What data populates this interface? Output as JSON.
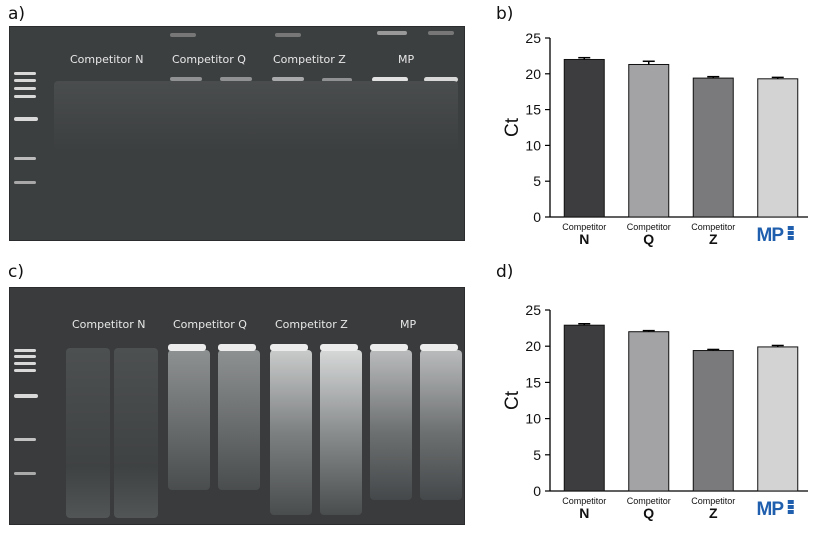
{
  "panels": {
    "a": {
      "label": "a)",
      "lanes": [
        "Competitor N",
        "Competitor Q",
        "Competitor Z",
        "MP"
      ]
    },
    "b": {
      "label": "b)"
    },
    "c": {
      "label": "c)",
      "lanes": [
        "Competitor N",
        "Competitor Q",
        "Competitor Z",
        "MP"
      ]
    },
    "d": {
      "label": "d)"
    }
  },
  "chart_data": [
    {
      "type": "bar",
      "panel": "b",
      "categories": [
        {
          "top": "Competitor",
          "bottom": "N"
        },
        {
          "top": "Competitor",
          "bottom": "Q"
        },
        {
          "top": "Competitor",
          "bottom": "Z"
        },
        {
          "logo": "MP"
        }
      ],
      "values": [
        22.0,
        21.3,
        19.4,
        19.3
      ],
      "errors": [
        0.25,
        0.45,
        0.2,
        0.2
      ],
      "colors": [
        "#3d3d3f",
        "#a3a3a5",
        "#7a7a7c",
        "#d3d3d4"
      ],
      "ylabel": "Ct",
      "ylim": [
        0,
        25
      ],
      "yticks": [
        "0",
        "5",
        "10",
        "15",
        "20",
        "25"
      ],
      "grid": false
    },
    {
      "type": "bar",
      "panel": "d",
      "categories": [
        {
          "top": "Competitor",
          "bottom": "N"
        },
        {
          "top": "Competitor",
          "bottom": "Q"
        },
        {
          "top": "Competitor",
          "bottom": "Z"
        },
        {
          "logo": "MP"
        }
      ],
      "values": [
        22.9,
        22.0,
        19.4,
        19.9
      ],
      "errors": [
        0.2,
        0.15,
        0.15,
        0.2
      ],
      "colors": [
        "#3d3d3f",
        "#a3a3a5",
        "#7a7a7c",
        "#d3d3d4"
      ],
      "ylabel": "Ct",
      "ylim": [
        0,
        25
      ],
      "yticks": [
        "0",
        "5",
        "10",
        "15",
        "20",
        "25"
      ],
      "grid": false
    }
  ],
  "colors": {
    "mp_logo": "#1f5fae",
    "gel_bg": "#3c3f40"
  }
}
